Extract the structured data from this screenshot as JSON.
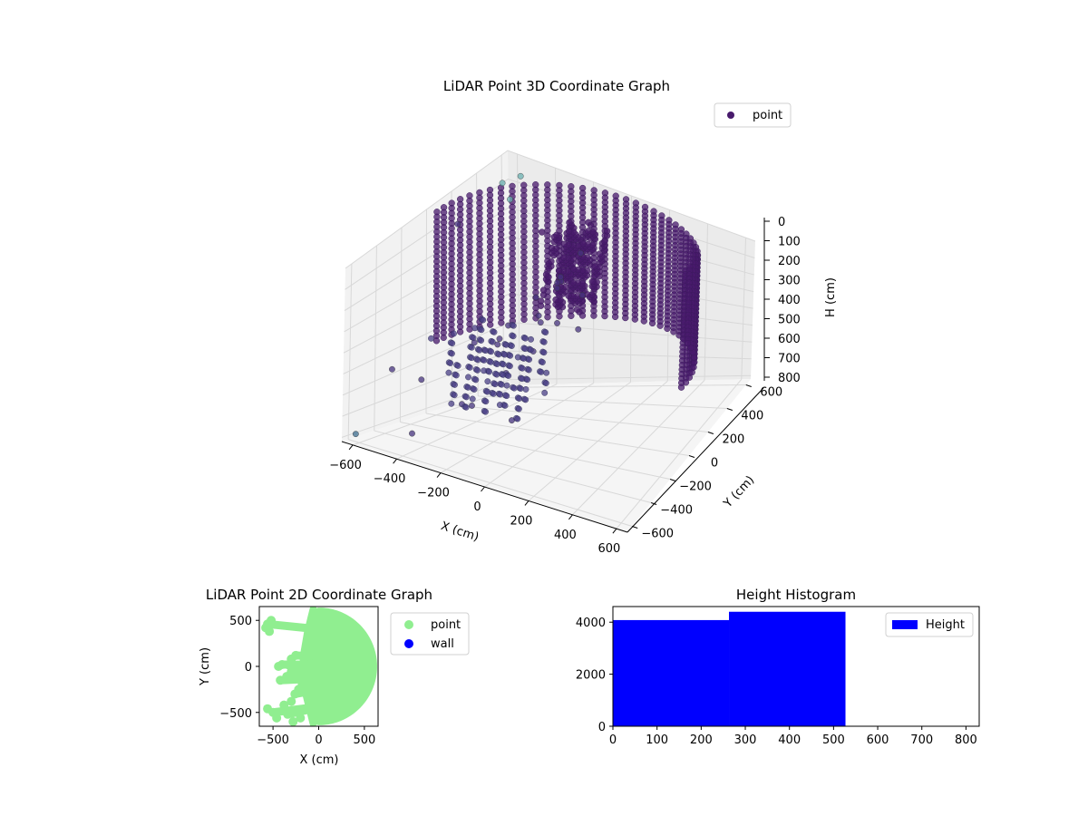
{
  "figure": {
    "title_3d": "LiDAR Point 3D Coordinate Graph",
    "title_2d": "LiDAR Point 2D Coordinate Graph",
    "title_hist": "Height Histogram"
  },
  "chart_data": [
    {
      "type": "scatter",
      "title": "LiDAR Point 3D Coordinate Graph",
      "xlabel": "X (cm)",
      "ylabel": "Y (cm)",
      "zlabel": "H (cm)",
      "xlim": [
        -650,
        650
      ],
      "ylim": [
        -650,
        650
      ],
      "zlim": [
        0,
        820
      ],
      "z_inverted": true,
      "x_ticks": [
        "−600",
        "−400",
        "−200",
        "0",
        "200",
        "400",
        "600"
      ],
      "y_ticks": [
        "−600",
        "−400",
        "−200",
        "0",
        "200",
        "400",
        "600"
      ],
      "z_ticks": [
        "0",
        "100",
        "200",
        "300",
        "400",
        "500",
        "600",
        "700",
        "800"
      ],
      "grid": true,
      "legend": {
        "position": "top-right",
        "entries": [
          "point"
        ]
      },
      "colormap_hint": "viridis (dark purple dominant)",
      "colors": {
        "point": "#481a6c",
        "far_point": "#3e6d8f",
        "light_point": "#6ab0b0"
      },
      "series": [
        {
          "name": "point",
          "shape": "half-cylinder wall of points on the +Y side, radius ~600 cm, heights 0 to ~520 cm, plus scattered clusters near the origin",
          "wall": {
            "radius": 600,
            "angle_start_deg": -90,
            "angle_end_deg": 90,
            "h_min": 0,
            "h_max": 520
          },
          "scattered": [
            [
              -550,
              450,
              30
            ],
            [
              -500,
              520,
              15
            ],
            [
              -480,
              400,
              60
            ],
            [
              -620,
              200,
              120
            ],
            [
              -580,
              -150,
              640
            ],
            [
              -600,
              -350,
              550
            ],
            [
              -640,
              -560,
              800
            ],
            [
              -350,
              -620,
              700
            ],
            [
              -180,
              -520,
              560
            ],
            [
              0,
              -420,
              620
            ],
            [
              -300,
              -200,
              420
            ],
            [
              -250,
              0,
              400
            ],
            [
              -120,
              50,
              380
            ],
            [
              -80,
              120,
              250
            ],
            [
              -40,
              80,
              200
            ],
            [
              -200,
              150,
              320
            ],
            [
              -150,
              250,
              450
            ],
            [
              -100,
              350,
              500
            ],
            [
              -300,
              300,
              600
            ],
            [
              -350,
              100,
              500
            ],
            [
              -420,
              200,
              560
            ],
            [
              -60,
              -80,
              300
            ],
            [
              0,
              0,
              150
            ],
            [
              -20,
              220,
              120
            ],
            [
              -250,
              420,
              350
            ],
            [
              -180,
              520,
              420
            ],
            [
              -120,
              -250,
              500
            ],
            [
              -240,
              -320,
              640
            ]
          ]
        }
      ]
    },
    {
      "type": "scatter",
      "title": "LiDAR Point 2D Coordinate Graph",
      "xlabel": "X (cm)",
      "ylabel": "Y (cm)",
      "xlim": [
        -650,
        650
      ],
      "ylim": [
        -650,
        650
      ],
      "x_ticks": [
        "−500",
        "0",
        "500"
      ],
      "x_tick_values": [
        -500,
        0,
        500
      ],
      "y_ticks": [
        "500",
        "0",
        "−500"
      ],
      "y_tick_values": [
        500,
        0,
        -500
      ],
      "legend": {
        "position": "outside-right",
        "entries": [
          "point",
          "wall"
        ]
      },
      "colors": {
        "point": "#90ee90",
        "wall": "#0000ff"
      },
      "series": [
        {
          "name": "point",
          "shape": "filled half-disc on the +X side, radius ~600 cm, with ragged fringe toward negative X",
          "fringe": [
            [
              -560,
              460
            ],
            [
              -520,
              500
            ],
            [
              -580,
              420
            ],
            [
              -540,
              380
            ],
            [
              -400,
              20
            ],
            [
              -440,
              0
            ],
            [
              -320,
              10
            ],
            [
              -300,
              -60
            ],
            [
              -350,
              -110
            ],
            [
              -250,
              120
            ],
            [
              -300,
              80
            ],
            [
              -420,
              -150
            ],
            [
              -560,
              -460
            ],
            [
              -500,
              -500
            ],
            [
              -460,
              -560
            ],
            [
              -380,
              -420
            ],
            [
              -340,
              -520
            ],
            [
              -280,
              -600
            ],
            [
              -240,
              -480
            ],
            [
              -200,
              -560
            ],
            [
              -260,
              -300
            ],
            [
              -220,
              -250
            ],
            [
              -180,
              -200
            ],
            [
              -300,
              -380
            ]
          ]
        },
        {
          "name": "wall",
          "values": []
        }
      ]
    },
    {
      "type": "bar",
      "title": "Height Histogram",
      "legend": {
        "position": "top-right",
        "entries": [
          "Height"
        ]
      },
      "xlim": [
        0,
        830
      ],
      "ylim": [
        0,
        4600
      ],
      "x_ticks": [
        "0",
        "100",
        "200",
        "300",
        "400",
        "500",
        "600",
        "700",
        "800"
      ],
      "x_tick_values": [
        0,
        100,
        200,
        300,
        400,
        500,
        600,
        700,
        800
      ],
      "y_ticks": [
        "0",
        "2000",
        "4000"
      ],
      "y_tick_values": [
        0,
        2000,
        4000
      ],
      "colors": {
        "Height": "#0000ff"
      },
      "bins": [
        {
          "from": 0,
          "to": 263,
          "value": 4080
        },
        {
          "from": 263,
          "to": 527,
          "value": 4400
        },
        {
          "from": 527,
          "to": 790,
          "value": 0
        }
      ]
    }
  ]
}
